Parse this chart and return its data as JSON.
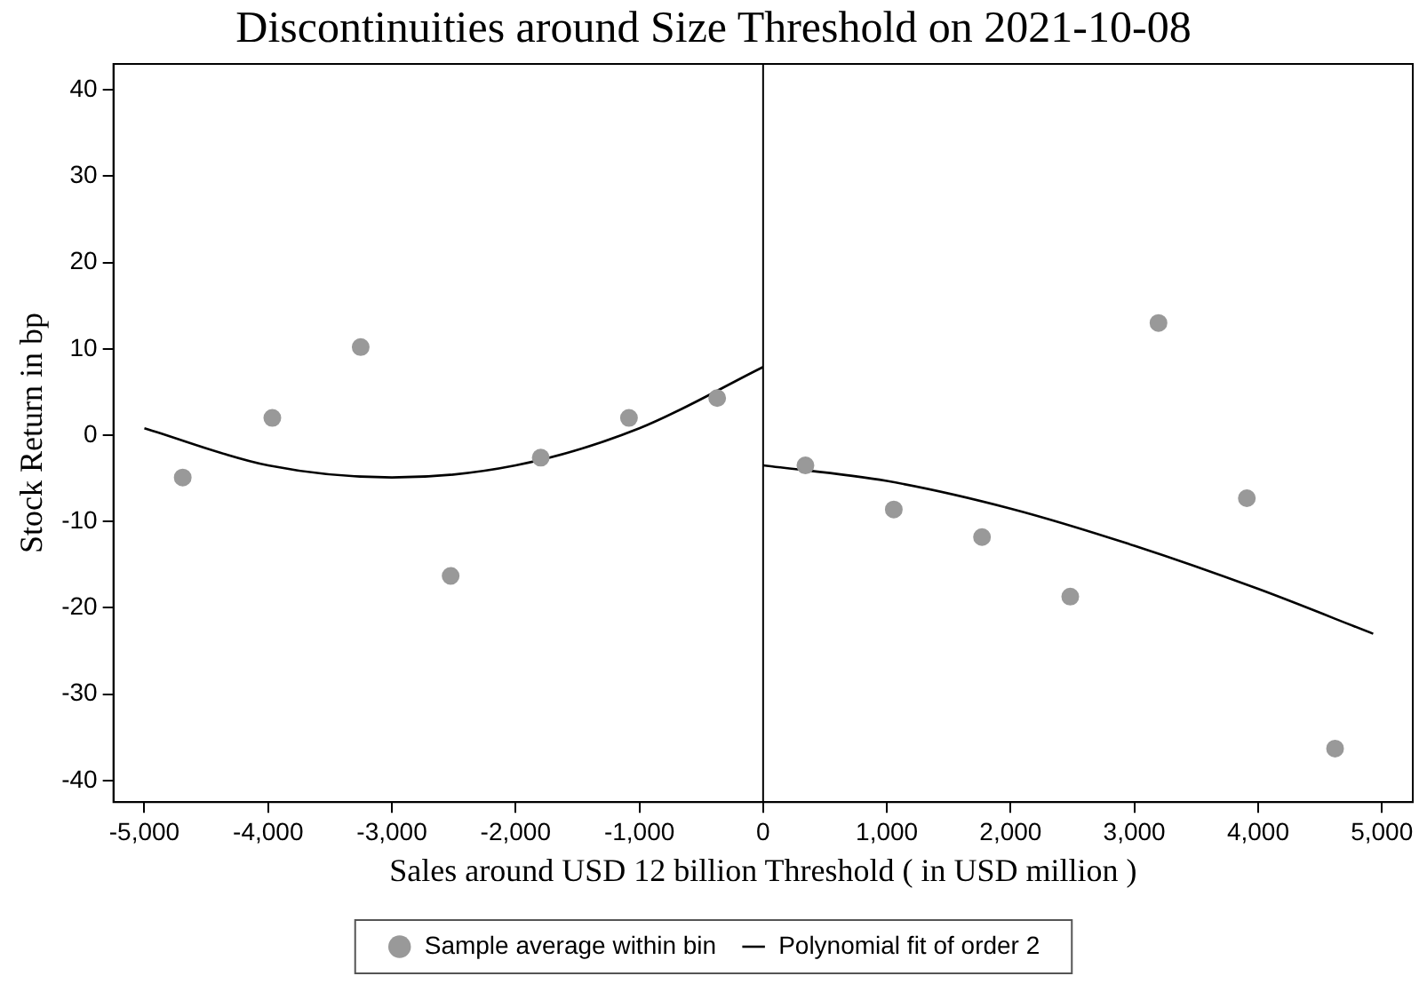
{
  "chart_data": {
    "type": "scatter",
    "title": "Discontinuities around Size Threshold on 2021-10-08",
    "xlabel": "Sales around USD 12 billion Threshold ( in USD million )",
    "ylabel": "Stock Return in bp",
    "xlim": [
      -5250,
      5250
    ],
    "xticks": [
      {
        "value": -5000,
        "label": "-5,000"
      },
      {
        "value": -4000,
        "label": "-4,000"
      },
      {
        "value": -3000,
        "label": "-3,000"
      },
      {
        "value": -2000,
        "label": "-2,000"
      },
      {
        "value": -1000,
        "label": "-1,000"
      },
      0,
      {
        "value": 1000,
        "label": "1,000"
      },
      {
        "value": 2000,
        "label": "2,000"
      },
      {
        "value": 3000,
        "label": "3,000"
      },
      {
        "value": 4000,
        "label": "4,000"
      },
      {
        "value": 5000,
        "label": "5,000"
      }
    ],
    "ylim": [
      -42.5,
      43
    ],
    "yticks": [
      -40,
      -30,
      -20,
      -10,
      0,
      10,
      20,
      30,
      40
    ],
    "grid": false,
    "legend": "bottom",
    "ref_lines": [
      {
        "axis": "x",
        "value": 0,
        "color": "#000000"
      }
    ],
    "series": [
      {
        "name": "Sample average within bin",
        "type": "scatter",
        "marker": "circle",
        "color": "#999999",
        "x": [
          -4690,
          -3966,
          -3252,
          -2525,
          -1797,
          -1084,
          -371,
          342,
          1056,
          1769,
          2482,
          3195,
          3909,
          4622
        ],
        "values": [
          -4.9,
          2.0,
          10.2,
          -16.3,
          -2.6,
          2.0,
          4.3,
          -3.5,
          -8.6,
          -11.8,
          -18.7,
          13.0,
          -7.3,
          -36.3
        ]
      },
      {
        "name": "Polynomial fit of order 2",
        "type": "line",
        "marker": "none",
        "color": "#000000",
        "x": [
          -5000,
          -4000,
          -3000,
          -2000,
          -1000,
          0,
          null,
          0,
          1000,
          2000,
          3000,
          4000,
          4930
        ],
        "values": [
          0.8,
          -3.5,
          -4.9,
          -3.5,
          0.8,
          7.9,
          null,
          -3.5,
          -5.3,
          -8.5,
          -12.8,
          -17.8,
          -23.0
        ]
      }
    ]
  }
}
